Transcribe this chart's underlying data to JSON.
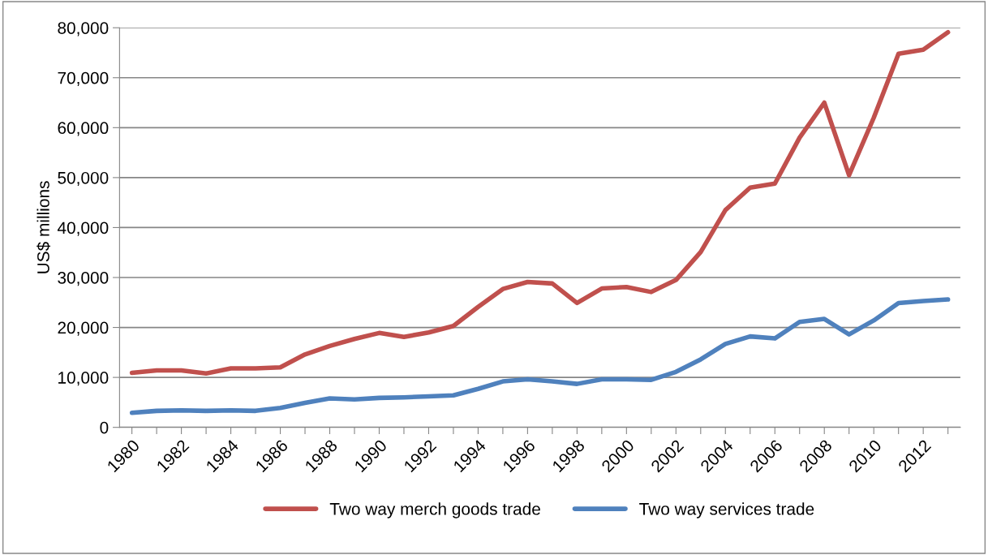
{
  "chart_data": {
    "type": "line",
    "ylabel": "US$ millions",
    "categories": [
      "1980",
      null,
      "1982",
      null,
      "1984",
      null,
      "1986",
      null,
      "1988",
      null,
      "1990",
      null,
      "1992",
      null,
      "1994",
      null,
      "1996",
      null,
      "1998",
      null,
      "2000",
      null,
      "2002",
      null,
      "2004",
      null,
      "2006",
      null,
      "2008",
      null,
      "2010",
      null,
      "2012",
      null
    ],
    "series": [
      {
        "name": "Two way merch goods trade",
        "color": "#c0504d",
        "values": [
          10900,
          11400,
          11400,
          10800,
          11800,
          11800,
          12000,
          14600,
          16300,
          17700,
          18900,
          18100,
          19000,
          20300,
          24100,
          27700,
          29100,
          28800,
          24900,
          27800,
          28100,
          27100,
          29500,
          35100,
          43500,
          48000,
          48800,
          58000,
          65000,
          50500,
          62000,
          74800,
          75600,
          79100
        ]
      },
      {
        "name": "Two way services trade",
        "color": "#4f81bd",
        "values": [
          2900,
          3300,
          3400,
          3300,
          3400,
          3300,
          3900,
          4900,
          5800,
          5600,
          5900,
          6000,
          6200,
          6400,
          7700,
          9200,
          9600,
          9200,
          8700,
          9600,
          9600,
          9500,
          11100,
          13600,
          16700,
          18200,
          17800,
          21100,
          21700,
          18600,
          21400,
          24900,
          25300,
          25600
        ]
      }
    ],
    "ylim": [
      0,
      80000
    ],
    "yticks": [
      {
        "value": 0,
        "label": "0"
      },
      {
        "value": 10000,
        "label": "10,000"
      },
      {
        "value": 20000,
        "label": "20,000"
      },
      {
        "value": 30000,
        "label": "30,000"
      },
      {
        "value": 40000,
        "label": "40,000"
      },
      {
        "value": 50000,
        "label": "50,000"
      },
      {
        "value": 60000,
        "label": "60,000"
      },
      {
        "value": 70000,
        "label": "70,000"
      },
      {
        "value": 80000,
        "label": "80,000"
      }
    ],
    "grid": "y",
    "legend": "bottom",
    "marker": "none",
    "line_style": "solid"
  }
}
